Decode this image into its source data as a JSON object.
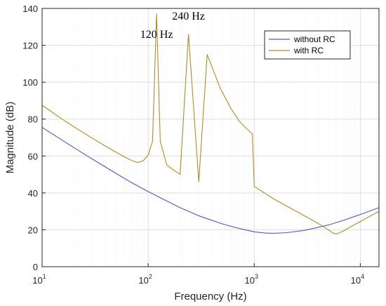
{
  "chart_data": {
    "type": "line",
    "xlabel": "Frequency  (Hz)",
    "ylabel": "Magnitude (dB)",
    "x_scale": "log",
    "xlim": [
      10,
      15000
    ],
    "ylim": [
      0,
      140
    ],
    "x_ticks": [
      {
        "value": 10,
        "base": "10",
        "exp": "1"
      },
      {
        "value": 100,
        "base": "10",
        "exp": "2"
      },
      {
        "value": 1000,
        "base": "10",
        "exp": "3"
      },
      {
        "value": 10000,
        "base": "10",
        "exp": "4"
      }
    ],
    "y_ticks": [
      0,
      20,
      40,
      60,
      80,
      100,
      120,
      140
    ],
    "grid": true,
    "legend_position": "top-right",
    "annotations": [
      {
        "text": "120 Hz",
        "x": 120,
        "y": 124
      },
      {
        "text": "240 Hz",
        "x": 240,
        "y": 134
      }
    ],
    "series": [
      {
        "name": "without RC",
        "color": "#4a5cc7",
        "x": [
          10,
          20,
          30,
          50,
          70,
          100,
          150,
          200,
          300,
          500,
          700,
          1000,
          1300,
          1500,
          2000,
          3000,
          5000,
          7000,
          10000,
          15000
        ],
        "y": [
          75.5,
          64.5,
          58.2,
          50.5,
          45.5,
          40.7,
          35.6,
          32.0,
          27.6,
          23.2,
          20.9,
          18.9,
          18.2,
          18.1,
          18.4,
          19.7,
          22.6,
          25.2,
          28.3,
          32.0
        ]
      },
      {
        "name": "with RC",
        "color": "#b5882a",
        "x": [
          10,
          15,
          20,
          30,
          40,
          50,
          60,
          70,
          80,
          90,
          100,
          110,
          120,
          130,
          150,
          200,
          240,
          300,
          360,
          480,
          600,
          720,
          840,
          960,
          1000,
          1500,
          2000,
          3000,
          4000,
          5000,
          5600,
          6000,
          7000,
          8000,
          10000,
          12000,
          15000
        ],
        "y": [
          87.5,
          80.5,
          75.8,
          69.5,
          65.2,
          62.0,
          59.5,
          57.5,
          56.5,
          57.5,
          60.5,
          68.0,
          137.0,
          68.0,
          55.0,
          50.0,
          126.0,
          46.0,
          115.0,
          96.5,
          86.0,
          79.0,
          75.0,
          72.0,
          43.5,
          37.0,
          33.0,
          27.5,
          23.5,
          20.0,
          18.0,
          17.8,
          19.5,
          21.5,
          24.5,
          27.0,
          30.0
        ]
      }
    ]
  }
}
